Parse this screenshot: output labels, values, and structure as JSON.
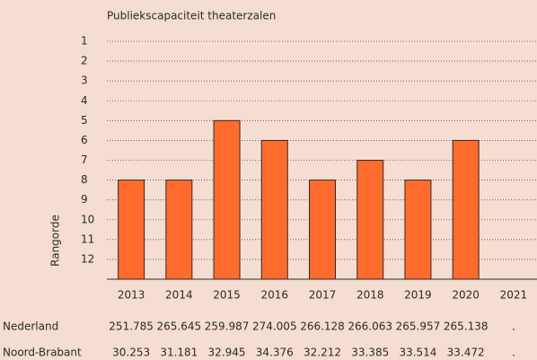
{
  "chart_data": {
    "type": "bar",
    "title": "Publiekscapaciteit theaterzalen",
    "y_label": "Rangorde",
    "categories": [
      "2013",
      "2014",
      "2015",
      "2016",
      "2017",
      "2018",
      "2019",
      "2020",
      "2021"
    ],
    "values": [
      8,
      8,
      5,
      6,
      8,
      7,
      8,
      6,
      null
    ],
    "color": "#ff6b2c",
    "ylim": [
      13,
      1
    ],
    "yticks": [
      1,
      2,
      3,
      4,
      5,
      6,
      7,
      8,
      9,
      10,
      11,
      12
    ],
    "grid": true,
    "table": {
      "rows": [
        {
          "label": "Nederland",
          "values": [
            "251.785",
            "265.645",
            "259.987",
            "274.005",
            "266.128",
            "266.063",
            "265.957",
            "265.138",
            "."
          ]
        },
        {
          "label": "Noord-Brabant",
          "values": [
            "30.253",
            "31.181",
            "32.945",
            "34.376",
            "32.212",
            "33.385",
            "33.514",
            "33.472",
            "."
          ]
        }
      ]
    }
  }
}
